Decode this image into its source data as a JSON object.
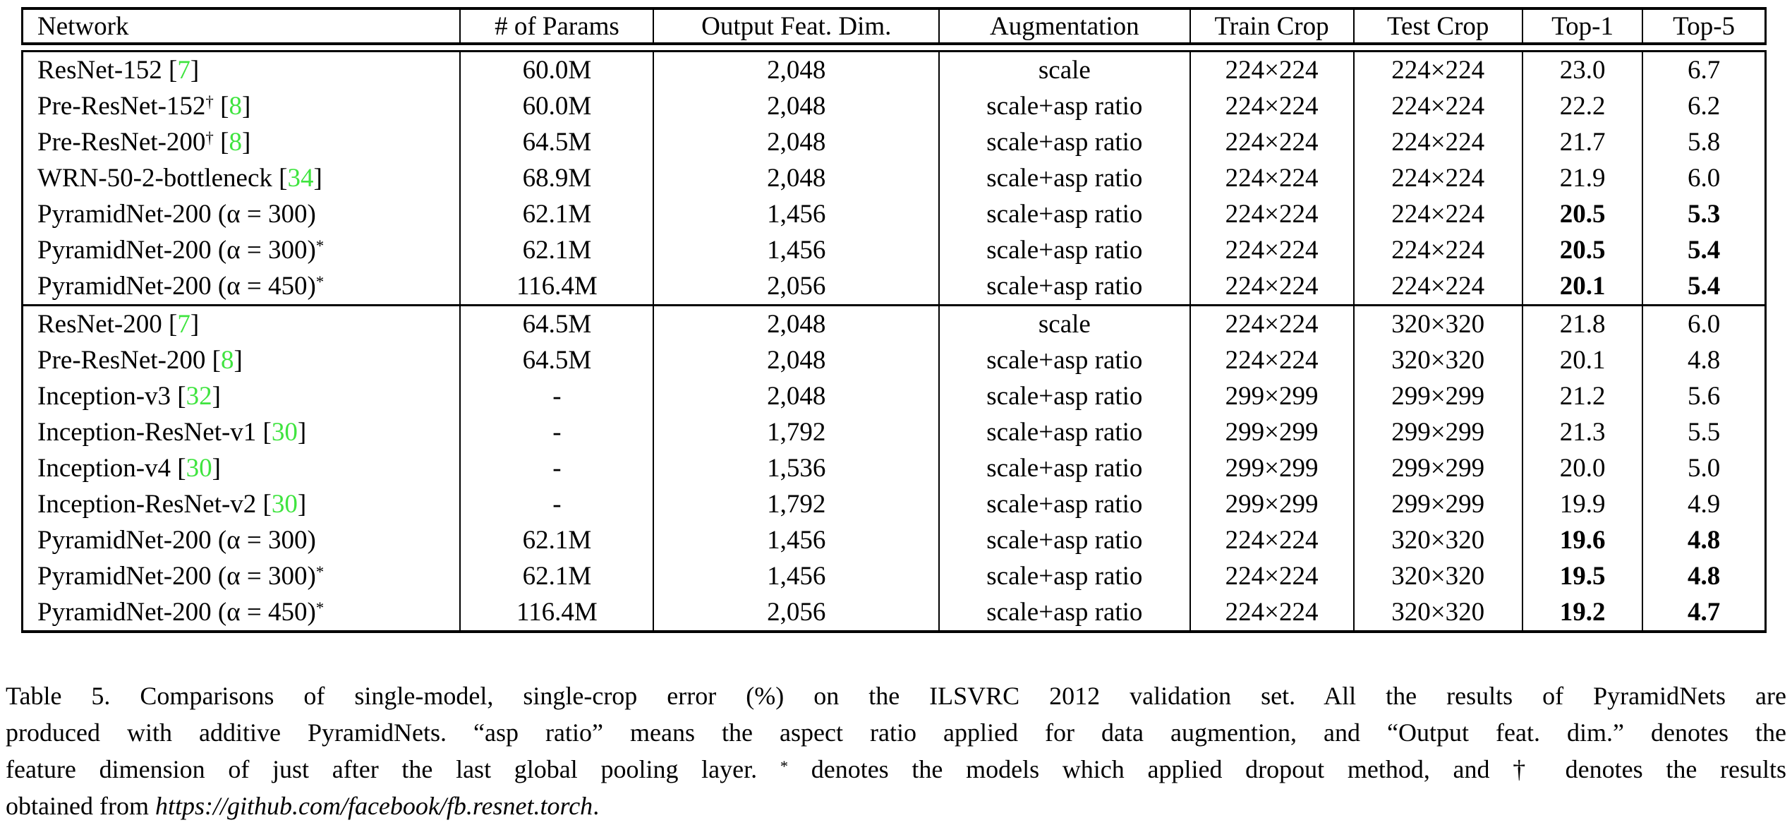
{
  "colors": {
    "citation_green": "#3fe43f",
    "text": "#000000",
    "background": "#ffffff"
  },
  "table": {
    "columns": [
      {
        "label": "Network",
        "width": 25.1,
        "align": "left"
      },
      {
        "label": "# of Params",
        "width": 11.1,
        "align": "center"
      },
      {
        "label": "Output Feat. Dim.",
        "width": 16.4,
        "align": "center"
      },
      {
        "label": "Augmentation",
        "width": 14.4,
        "align": "center"
      },
      {
        "label": "Train Crop",
        "width": 9.4,
        "align": "center"
      },
      {
        "label": "Test Crop",
        "width": 9.7,
        "align": "center"
      },
      {
        "label": "Top-1",
        "width": 6.9,
        "align": "center"
      },
      {
        "label": "Top-5",
        "width": 7.0,
        "align": "center"
      }
    ],
    "groups": [
      {
        "rows": [
          {
            "network": {
              "name": "ResNet-152",
              "sup": "",
              "cite": "7"
            },
            "cells": [
              "60.0M",
              "2,048",
              "scale",
              "224×224",
              "224×224",
              "23.0",
              "6.7"
            ],
            "bold_results": false
          },
          {
            "network": {
              "name": "Pre-ResNet-152",
              "sup": "†",
              "cite": "8"
            },
            "cells": [
              "60.0M",
              "2,048",
              "scale+asp ratio",
              "224×224",
              "224×224",
              "22.2",
              "6.2"
            ],
            "bold_results": false
          },
          {
            "network": {
              "name": "Pre-ResNet-200",
              "sup": "†",
              "cite": "8"
            },
            "cells": [
              "64.5M",
              "2,048",
              "scale+asp ratio",
              "224×224",
              "224×224",
              "21.7",
              "5.8"
            ],
            "bold_results": false
          },
          {
            "network": {
              "name": "WRN-50-2-bottleneck",
              "sup": "",
              "cite": "34"
            },
            "cells": [
              "68.9M",
              "2,048",
              "scale+asp ratio",
              "224×224",
              "224×224",
              "21.9",
              "6.0"
            ],
            "bold_results": false
          },
          {
            "network": {
              "name": "PyramidNet-200 (α = 300)",
              "sup": "",
              "cite": ""
            },
            "cells": [
              "62.1M",
              "1,456",
              "scale+asp ratio",
              "224×224",
              "224×224",
              "20.5",
              "5.3"
            ],
            "bold_results": true
          },
          {
            "network": {
              "name": "PyramidNet-200 (α = 300)",
              "sup": "*",
              "cite": ""
            },
            "cells": [
              "62.1M",
              "1,456",
              "scale+asp ratio",
              "224×224",
              "224×224",
              "20.5",
              "5.4"
            ],
            "bold_results": true
          },
          {
            "network": {
              "name": "PyramidNet-200 (α = 450)",
              "sup": "*",
              "cite": ""
            },
            "cells": [
              "116.4M",
              "2,056",
              "scale+asp ratio",
              "224×224",
              "224×224",
              "20.1",
              "5.4"
            ],
            "bold_results": true
          }
        ]
      },
      {
        "rows": [
          {
            "network": {
              "name": "ResNet-200",
              "sup": "",
              "cite": "7"
            },
            "cells": [
              "64.5M",
              "2,048",
              "scale",
              "224×224",
              "320×320",
              "21.8",
              "6.0"
            ],
            "bold_results": false
          },
          {
            "network": {
              "name": "Pre-ResNet-200",
              "sup": "",
              "cite": "8"
            },
            "cells": [
              "64.5M",
              "2,048",
              "scale+asp ratio",
              "224×224",
              "320×320",
              "20.1",
              "4.8"
            ],
            "bold_results": false
          },
          {
            "network": {
              "name": "Inception-v3",
              "sup": "",
              "cite": "32"
            },
            "cells": [
              "-",
              "2,048",
              "scale+asp ratio",
              "299×299",
              "299×299",
              "21.2",
              "5.6"
            ],
            "bold_results": false
          },
          {
            "network": {
              "name": "Inception-ResNet-v1",
              "sup": "",
              "cite": "30"
            },
            "cells": [
              "-",
              "1,792",
              "scale+asp ratio",
              "299×299",
              "299×299",
              "21.3",
              "5.5"
            ],
            "bold_results": false
          },
          {
            "network": {
              "name": "Inception-v4",
              "sup": "",
              "cite": "30"
            },
            "cells": [
              "-",
              "1,536",
              "scale+asp ratio",
              "299×299",
              "299×299",
              "20.0",
              "5.0"
            ],
            "bold_results": false
          },
          {
            "network": {
              "name": "Inception-ResNet-v2",
              "sup": "",
              "cite": "30"
            },
            "cells": [
              "-",
              "1,792",
              "scale+asp ratio",
              "299×299",
              "299×299",
              "19.9",
              "4.9"
            ],
            "bold_results": false
          },
          {
            "network": {
              "name": "PyramidNet-200 (α = 300)",
              "sup": "",
              "cite": ""
            },
            "cells": [
              "62.1M",
              "1,456",
              "scale+asp ratio",
              "224×224",
              "320×320",
              "19.6",
              "4.8"
            ],
            "bold_results": true
          },
          {
            "network": {
              "name": "PyramidNet-200 (α = 300)",
              "sup": "*",
              "cite": ""
            },
            "cells": [
              "62.1M",
              "1,456",
              "scale+asp ratio",
              "224×224",
              "320×320",
              "19.5",
              "4.8"
            ],
            "bold_results": true
          },
          {
            "network": {
              "name": "PyramidNet-200 (α = 450)",
              "sup": "*",
              "cite": ""
            },
            "cells": [
              "116.4M",
              "2,056",
              "scale+asp ratio",
              "224×224",
              "320×320",
              "19.2",
              "4.7"
            ],
            "bold_results": true
          }
        ]
      }
    ]
  },
  "caption": {
    "lines": [
      [
        {
          "text": "Table 5. Comparisons of single-model, single-crop error (%) on the ILSVRC 2012 validation set.  All the results of PyramidNets are",
          "style": "normal"
        }
      ],
      [
        {
          "text": "produced with additive PyramidNets. “asp ratio” means the aspect ratio applied for data augmention, and “Output feat. dim.” denotes the",
          "style": "normal"
        }
      ],
      [
        {
          "text": "feature dimension of just after the last global pooling layer. ",
          "style": "normal"
        },
        {
          "text": "*",
          "style": "sup"
        },
        {
          "text": " denotes the models which applied dropout method, and † denotes the results",
          "style": "normal"
        }
      ],
      [
        {
          "text": "obtained from ",
          "style": "normal"
        },
        {
          "text": "https://github.com/facebook/fb.resnet.torch",
          "style": "italic"
        },
        {
          "text": ".",
          "style": "normal"
        }
      ]
    ]
  }
}
